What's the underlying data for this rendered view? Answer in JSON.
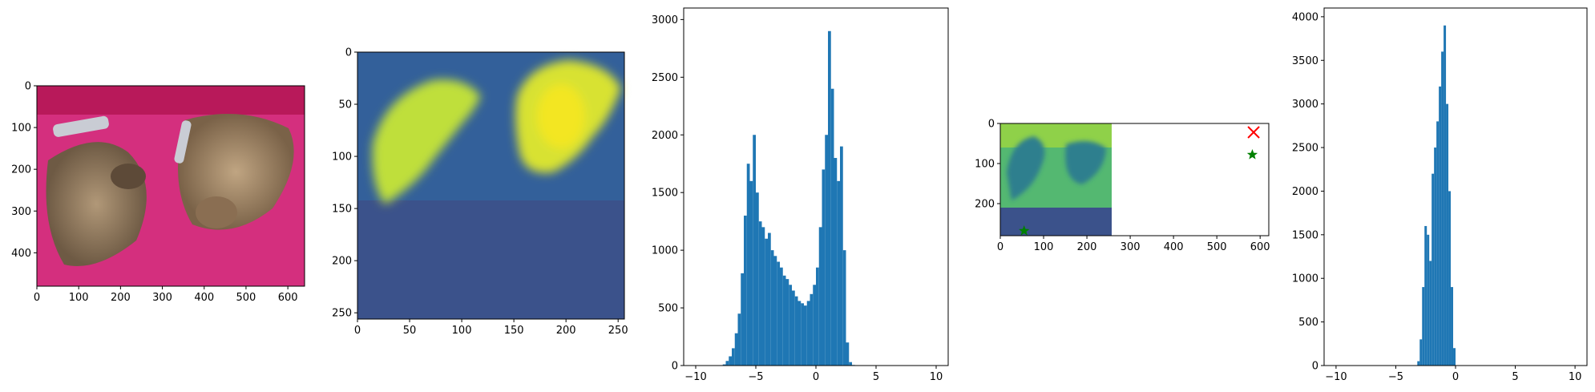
{
  "colors": {
    "bar": "#1f77b4",
    "cross_marker": "#ff0000",
    "star_marker": "#008000",
    "viridis_low": "#3b528b",
    "viridis_high": "#fde725"
  },
  "chart_data": [
    {
      "type": "image",
      "content": "photo of two tabby cats on a pink couch with two remote controls",
      "xlim": [
        0,
        640
      ],
      "ylim": [
        480,
        0
      ],
      "xticks": [
        "0",
        "100",
        "200",
        "300",
        "400",
        "500",
        "600"
      ],
      "yticks": [
        "0",
        "100",
        "200",
        "300",
        "400"
      ]
    },
    {
      "type": "heatmap",
      "colormap": "viridis",
      "xlim": [
        0,
        256
      ],
      "ylim": [
        256,
        0
      ],
      "xticks": [
        "0",
        "50",
        "100",
        "150",
        "200",
        "250"
      ],
      "yticks": [
        "0",
        "50",
        "100",
        "150",
        "200",
        "250"
      ]
    },
    {
      "type": "bar",
      "kind": "histogram",
      "xlim": [
        -11,
        11
      ],
      "ylim": [
        0,
        3100
      ],
      "xticks": [
        "−10",
        "−5",
        "0",
        "5",
        "10"
      ],
      "yticks": [
        "0",
        "500",
        "1000",
        "1500",
        "2000",
        "2500",
        "3000"
      ],
      "x": [
        -7.75,
        -7.5,
        -7.25,
        -7.0,
        -6.75,
        -6.5,
        -6.25,
        -6.0,
        -5.75,
        -5.5,
        -5.25,
        -5.0,
        -4.75,
        -4.5,
        -4.25,
        -4.0,
        -3.75,
        -3.5,
        -3.25,
        -3.0,
        -2.75,
        -2.5,
        -2.25,
        -2.0,
        -1.75,
        -1.5,
        -1.25,
        -1.0,
        -0.75,
        -0.5,
        -0.25,
        0.0,
        0.25,
        0.5,
        0.75,
        1.0,
        1.25,
        1.5,
        1.75,
        2.0,
        2.25,
        2.5,
        2.75,
        3.0
      ],
      "values": [
        10,
        40,
        80,
        150,
        280,
        450,
        800,
        1300,
        1750,
        1600,
        2000,
        1500,
        1250,
        1200,
        1100,
        1150,
        1000,
        950,
        900,
        850,
        780,
        750,
        700,
        650,
        600,
        560,
        540,
        520,
        560,
        620,
        700,
        850,
        1200,
        1700,
        2000,
        2900,
        2400,
        1800,
        1600,
        1900,
        1000,
        200,
        30,
        5
      ]
    },
    {
      "type": "scatter",
      "overlay": "inset image of the two cats over a viridis mask",
      "xlim": [
        0,
        620
      ],
      "ylim": [
        280,
        0
      ],
      "xticks": [
        "0",
        "100",
        "200",
        "300",
        "400",
        "500",
        "600"
      ],
      "yticks": [
        "0",
        "100",
        "200"
      ],
      "points": [
        {
          "x": 585,
          "y": 22,
          "marker": "x"
        },
        {
          "x": 582,
          "y": 78,
          "marker": "star"
        },
        {
          "x": 55,
          "y": 268,
          "marker": "star"
        }
      ]
    },
    {
      "type": "bar",
      "kind": "histogram",
      "xlim": [
        -11,
        11
      ],
      "ylim": [
        0,
        4100
      ],
      "xticks": [
        "−10",
        "−5",
        "0",
        "5",
        "10"
      ],
      "yticks": [
        "0",
        "500",
        "1000",
        "1500",
        "2000",
        "2500",
        "3000",
        "3500",
        "4000"
      ],
      "x": [
        -3.2,
        -3.0,
        -2.8,
        -2.6,
        -2.4,
        -2.2,
        -2.0,
        -1.8,
        -1.6,
        -1.4,
        -1.2,
        -1.0,
        -0.8,
        -0.6,
        -0.4,
        -0.2
      ],
      "values": [
        50,
        300,
        900,
        1600,
        1500,
        1200,
        2200,
        2500,
        2800,
        3200,
        3600,
        3900,
        3000,
        2000,
        900,
        200
      ]
    }
  ]
}
